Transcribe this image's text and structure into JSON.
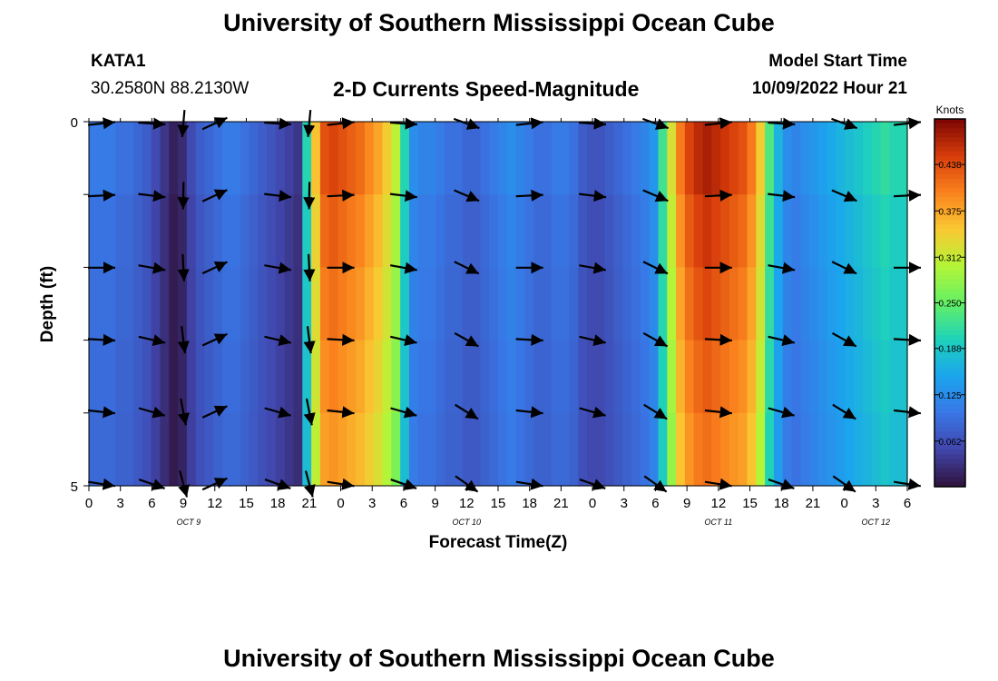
{
  "title": "University of Southern Mississippi Ocean Cube",
  "footer_title": "University of Southern Mississippi Ocean Cube",
  "station": {
    "name": "KATA1",
    "coords": "30.2580N  88.2130W"
  },
  "subtitle": "2-D Currents Speed-Magnitude",
  "model": {
    "label": "Model Start Time",
    "start": "10/09/2022 Hour 21"
  },
  "chart_data": {
    "type": "heatmap",
    "title": "2-D Currents Speed-Magnitude",
    "xlabel": "Forecast Time(Z)",
    "ylabel": "Depth (ft)",
    "x_hours": [
      0,
      78
    ],
    "ylim": [
      0,
      5
    ],
    "y_ticks": [
      "0",
      "5"
    ],
    "x_tick_hours": [
      0,
      3,
      6,
      9,
      12,
      15,
      18,
      21,
      24,
      27,
      30,
      33,
      36,
      39,
      42,
      45,
      48,
      51,
      54,
      57,
      60,
      63,
      66,
      69,
      72,
      75,
      78
    ],
    "x_tick_labels": [
      "0",
      "3",
      "6",
      "9",
      "12",
      "15",
      "18",
      "21",
      "0",
      "3",
      "6",
      "9",
      "12",
      "15",
      "18",
      "21",
      "0",
      "3",
      "6",
      "9",
      "12",
      "15",
      "18",
      "21",
      "0",
      "3",
      "6"
    ],
    "date_labels": [
      {
        "label": "OCT 9",
        "hour": 9.5
      },
      {
        "label": "OCT 10",
        "hour": 36
      },
      {
        "label": "OCT 11",
        "hour": 60
      },
      {
        "label": "OCT 12",
        "hour": 75
      }
    ],
    "colorbar": {
      "label": "Knots",
      "min": 0.0,
      "max": 0.5,
      "ticks": [
        "0.062",
        "0.125",
        "0.188",
        "0.250",
        "0.312",
        "0.375",
        "0.438"
      ],
      "tick_values": [
        0.062,
        0.125,
        0.188,
        0.25,
        0.312,
        0.375,
        0.438
      ]
    },
    "speed_profile_knots": [
      0.1,
      0.1,
      0.1,
      0.09,
      0.09,
      0.08,
      0.07,
      0.05,
      0.03,
      0.01,
      0.02,
      0.05,
      0.07,
      0.08,
      0.09,
      0.1,
      0.1,
      0.09,
      0.08,
      0.07,
      0.06,
      0.05,
      0.04,
      0.03,
      0.2,
      0.35,
      0.43,
      0.44,
      0.43,
      0.42,
      0.41,
      0.39,
      0.37,
      0.34,
      0.3,
      0.2,
      0.12,
      0.11,
      0.11,
      0.1,
      0.09,
      0.09,
      0.08,
      0.08,
      0.09,
      0.1,
      0.11,
      0.12,
      0.11,
      0.1,
      0.09,
      0.09,
      0.1,
      0.1,
      0.09,
      0.07,
      0.06,
      0.06,
      0.07,
      0.08,
      0.09,
      0.1,
      0.11,
      0.13,
      0.22,
      0.32,
      0.4,
      0.44,
      0.46,
      0.47,
      0.46,
      0.45,
      0.44,
      0.43,
      0.4,
      0.34,
      0.23,
      0.16,
      0.12,
      0.11,
      0.12,
      0.13,
      0.14,
      0.15,
      0.16,
      0.17,
      0.18,
      0.19,
      0.2,
      0.21,
      0.2,
      0.2
    ],
    "arrow_hours": [
      0,
      6,
      9,
      12,
      18,
      21,
      24,
      30,
      36,
      42,
      48,
      54,
      60,
      66,
      72,
      78
    ],
    "arrow_depth_rows": 6
  }
}
